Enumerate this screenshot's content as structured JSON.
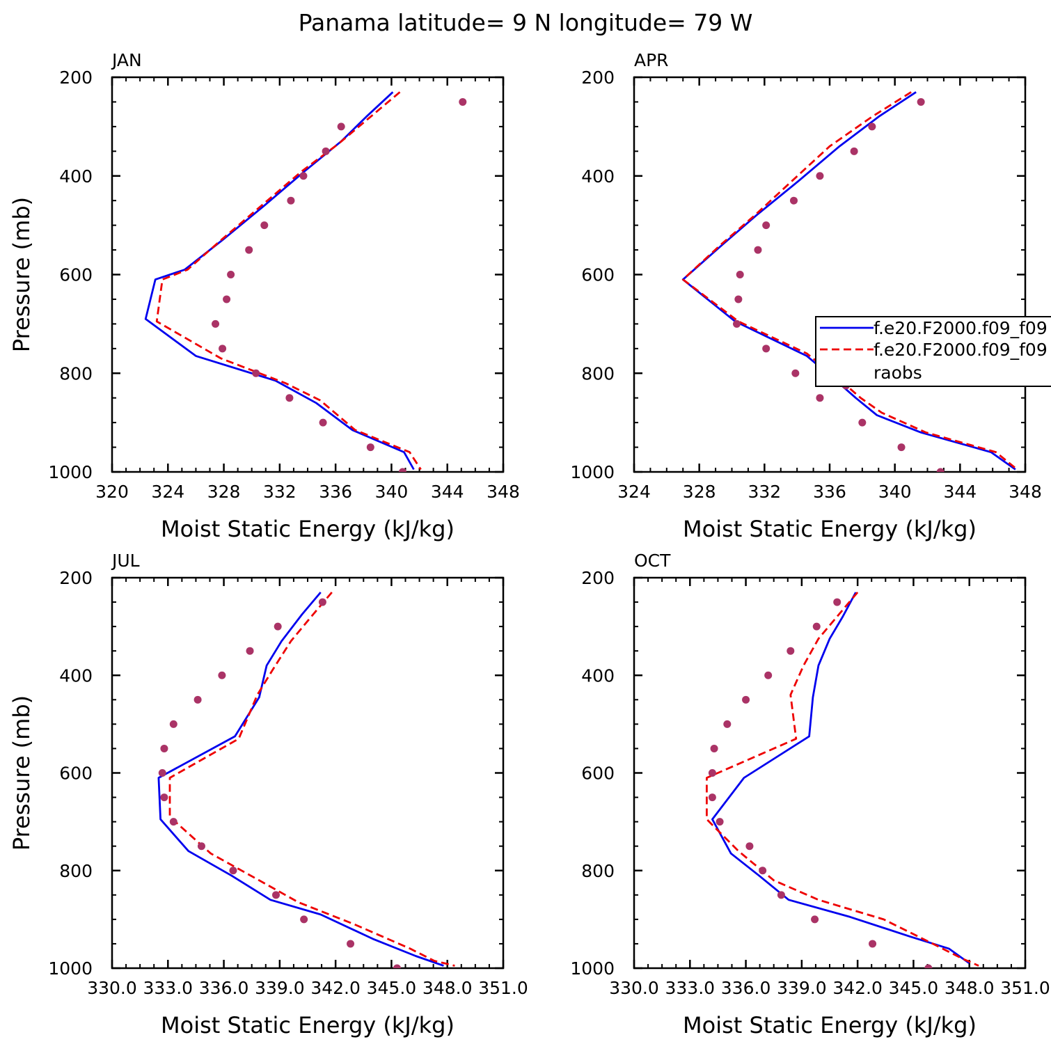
{
  "title": "Panama  latitude= 9 N longitude= 79 W",
  "colors": {
    "model1": "#0000ee",
    "model2": "#ee0000",
    "obs": "#aa3366"
  },
  "legend": {
    "entries": [
      "f.e20.F2000.f09_f09",
      "f.e20.F2000.f09_f09",
      "raobs"
    ]
  },
  "chart_data": [
    {
      "type": "line",
      "title": "JAN",
      "xlabel": "Moist Static Energy (kJ/kg)",
      "ylabel": "Pressure (mb)",
      "xlim": [
        320,
        348
      ],
      "ylim": [
        200,
        1000
      ],
      "x_ticks": [
        "320",
        "324",
        "328",
        "332",
        "336",
        "340",
        "344",
        "348"
      ],
      "y_ticks": [
        "200",
        "400",
        "600",
        "800",
        "1000"
      ],
      "series": [
        {
          "name": "f.e20.F2000.f09_f09",
          "style": "solid",
          "points": [
            [
              340.1,
              230
            ],
            [
              338.2,
              280
            ],
            [
              336.4,
              330
            ],
            [
              333.8,
              390
            ],
            [
              330.9,
              460
            ],
            [
              327.9,
              530
            ],
            [
              325.2,
              590
            ],
            [
              323.1,
              610
            ],
            [
              322.4,
              690
            ],
            [
              326.0,
              765
            ],
            [
              331.7,
              815
            ],
            [
              334.6,
              860
            ],
            [
              337.2,
              915
            ],
            [
              340.9,
              960
            ],
            [
              341.6,
              995
            ]
          ]
        },
        {
          "name": "f.e20.F2000.f09_f09",
          "style": "dashed",
          "points": [
            [
              340.6,
              230
            ],
            [
              338.3,
              285
            ],
            [
              336.2,
              335
            ],
            [
              333.6,
              390
            ],
            [
              330.7,
              460
            ],
            [
              327.8,
              530
            ],
            [
              325.4,
              590
            ],
            [
              323.6,
              610
            ],
            [
              323.2,
              695
            ],
            [
              327.8,
              770
            ],
            [
              332.4,
              820
            ],
            [
              334.9,
              855
            ],
            [
              337.4,
              915
            ],
            [
              341.3,
              960
            ],
            [
              342.1,
              995
            ]
          ]
        },
        {
          "name": "raobs",
          "style": "dots",
          "points": [
            [
              345.1,
              250
            ],
            [
              336.4,
              300
            ],
            [
              335.3,
              350
            ],
            [
              333.7,
              400
            ],
            [
              332.8,
              450
            ],
            [
              330.9,
              500
            ],
            [
              329.8,
              550
            ],
            [
              328.5,
              600
            ],
            [
              328.2,
              650
            ],
            [
              327.4,
              700
            ],
            [
              327.9,
              750
            ],
            [
              330.3,
              800
            ],
            [
              332.7,
              850
            ],
            [
              335.1,
              900
            ],
            [
              338.5,
              950
            ],
            [
              340.8,
              1000
            ]
          ]
        }
      ]
    },
    {
      "type": "line",
      "title": "APR",
      "xlabel": "Moist Static Energy (kJ/kg)",
      "ylabel": "",
      "xlim": [
        324,
        348
      ],
      "ylim": [
        200,
        1000
      ],
      "x_ticks": [
        "324",
        "328",
        "332",
        "336",
        "340",
        "344",
        "348"
      ],
      "y_ticks": [
        "200",
        "400",
        "600",
        "800",
        "1000"
      ],
      "series": [
        {
          "name": "f.e20.F2000.f09_f09",
          "style": "solid",
          "points": [
            [
              341.3,
              230
            ],
            [
              339.0,
              280
            ],
            [
              336.6,
              340
            ],
            [
              334.1,
              410
            ],
            [
              331.5,
              480
            ],
            [
              329.4,
              540
            ],
            [
              327.0,
              610
            ],
            [
              330.2,
              695
            ],
            [
              334.6,
              765
            ],
            [
              336.4,
              815
            ],
            [
              337.6,
              850
            ],
            [
              338.9,
              885
            ],
            [
              341.6,
              920
            ],
            [
              345.9,
              960
            ],
            [
              347.4,
              995
            ]
          ]
        },
        {
          "name": "f.e20.F2000.f09_f09",
          "style": "dashed",
          "points": [
            [
              341.0,
              230
            ],
            [
              338.6,
              280
            ],
            [
              336.0,
              340
            ],
            [
              333.7,
              410
            ],
            [
              331.4,
              480
            ],
            [
              329.3,
              540
            ],
            [
              327.0,
              610
            ],
            [
              330.4,
              695
            ],
            [
              334.6,
              760
            ],
            [
              336.5,
              810
            ],
            [
              337.9,
              850
            ],
            [
              339.2,
              880
            ],
            [
              341.9,
              920
            ],
            [
              346.2,
              960
            ],
            [
              347.5,
              995
            ]
          ]
        },
        {
          "name": "raobs",
          "style": "dots",
          "points": [
            [
              341.6,
              250
            ],
            [
              338.6,
              300
            ],
            [
              337.5,
              350
            ],
            [
              335.4,
              400
            ],
            [
              333.8,
              450
            ],
            [
              332.1,
              500
            ],
            [
              331.6,
              550
            ],
            [
              330.5,
              600
            ],
            [
              330.4,
              650
            ],
            [
              330.3,
              700
            ],
            [
              332.1,
              750
            ],
            [
              333.9,
              800
            ],
            [
              337.0,
              825
            ],
            [
              335.4,
              850
            ],
            [
              338.0,
              900
            ],
            [
              340.4,
              950
            ],
            [
              342.8,
              1000
            ]
          ]
        }
      ]
    },
    {
      "type": "line",
      "title": "JUL",
      "xlabel": "Moist Static Energy (kJ/kg)",
      "ylabel": "Pressure (mb)",
      "xlim": [
        330.0,
        351.0
      ],
      "ylim": [
        200,
        1000
      ],
      "x_ticks": [
        "330.0",
        "333.0",
        "336.0",
        "339.0",
        "342.0",
        "345.0",
        "348.0",
        "351.0"
      ],
      "y_ticks": [
        "200",
        "400",
        "600",
        "800",
        "1000"
      ],
      "series": [
        {
          "name": "f.e20.F2000.f09_f09",
          "style": "solid",
          "points": [
            [
              341.2,
              230
            ],
            [
              340.2,
              275
            ],
            [
              339.1,
              330
            ],
            [
              338.3,
              380
            ],
            [
              337.9,
              445
            ],
            [
              336.6,
              525
            ],
            [
              332.5,
              610
            ],
            [
              332.6,
              695
            ],
            [
              334.1,
              760
            ],
            [
              336.4,
              810
            ],
            [
              338.5,
              860
            ],
            [
              341.2,
              890
            ],
            [
              344.0,
              940
            ],
            [
              346.3,
              975
            ],
            [
              347.8,
              995
            ]
          ]
        },
        {
          "name": "f.e20.F2000.f09_f09",
          "style": "dashed",
          "points": [
            [
              341.8,
              230
            ],
            [
              340.8,
              275
            ],
            [
              339.6,
              330
            ],
            [
              338.6,
              390
            ],
            [
              337.8,
              440
            ],
            [
              336.8,
              530
            ],
            [
              333.1,
              610
            ],
            [
              333.1,
              690
            ],
            [
              335.3,
              765
            ],
            [
              337.9,
              820
            ],
            [
              340.0,
              865
            ],
            [
              343.0,
              910
            ],
            [
              346.0,
              960
            ],
            [
              347.3,
              985
            ],
            [
              348.4,
              995
            ]
          ]
        },
        {
          "name": "raobs",
          "style": "dots",
          "points": [
            [
              341.3,
              250
            ],
            [
              338.9,
              300
            ],
            [
              337.4,
              350
            ],
            [
              335.9,
              400
            ],
            [
              334.6,
              450
            ],
            [
              333.3,
              500
            ],
            [
              332.8,
              550
            ],
            [
              332.7,
              600
            ],
            [
              332.8,
              650
            ],
            [
              333.3,
              700
            ],
            [
              334.8,
              750
            ],
            [
              336.5,
              800
            ],
            [
              338.8,
              850
            ],
            [
              340.3,
              900
            ],
            [
              342.8,
              950
            ],
            [
              345.3,
              1000
            ]
          ]
        }
      ]
    },
    {
      "type": "line",
      "title": "OCT",
      "xlabel": "Moist Static Energy (kJ/kg)",
      "ylabel": "",
      "xlim": [
        330.0,
        351.0
      ],
      "ylim": [
        200,
        1000
      ],
      "x_ticks": [
        "330.0",
        "333.0",
        "336.0",
        "339.0",
        "342.0",
        "345.0",
        "348.0",
        "351.0"
      ],
      "y_ticks": [
        "200",
        "400",
        "600",
        "800",
        "1000"
      ],
      "series": [
        {
          "name": "f.e20.F2000.f09_f09",
          "style": "solid",
          "points": [
            [
              341.9,
              230
            ],
            [
              341.2,
              280
            ],
            [
              340.5,
              325
            ],
            [
              339.9,
              380
            ],
            [
              339.6,
              445
            ],
            [
              339.4,
              525
            ],
            [
              335.9,
              610
            ],
            [
              334.2,
              695
            ],
            [
              335.2,
              765
            ],
            [
              336.7,
              810
            ],
            [
              338.3,
              860
            ],
            [
              341.6,
              895
            ],
            [
              344.8,
              935
            ],
            [
              346.9,
              960
            ],
            [
              348.0,
              990
            ]
          ]
        },
        {
          "name": "f.e20.F2000.f09_f09",
          "style": "dashed",
          "points": [
            [
              342.0,
              230
            ],
            [
              341.0,
              275
            ],
            [
              339.9,
              325
            ],
            [
              339.1,
              380
            ],
            [
              338.4,
              440
            ],
            [
              338.7,
              530
            ],
            [
              333.9,
              610
            ],
            [
              333.9,
              695
            ],
            [
              335.6,
              760
            ],
            [
              337.5,
              820
            ],
            [
              339.9,
              860
            ],
            [
              343.4,
              900
            ],
            [
              346.3,
              955
            ],
            [
              347.6,
              980
            ],
            [
              348.5,
              995
            ]
          ]
        },
        {
          "name": "raobs",
          "style": "dots",
          "points": [
            [
              340.9,
              250
            ],
            [
              339.8,
              300
            ],
            [
              338.4,
              350
            ],
            [
              337.2,
              400
            ],
            [
              336.0,
              450
            ],
            [
              335.0,
              500
            ],
            [
              334.3,
              550
            ],
            [
              334.2,
              600
            ],
            [
              334.2,
              650
            ],
            [
              334.6,
              700
            ],
            [
              336.2,
              750
            ],
            [
              336.9,
              800
            ],
            [
              337.9,
              850
            ],
            [
              339.7,
              900
            ],
            [
              342.8,
              950
            ],
            [
              345.8,
              1000
            ]
          ]
        }
      ]
    }
  ]
}
